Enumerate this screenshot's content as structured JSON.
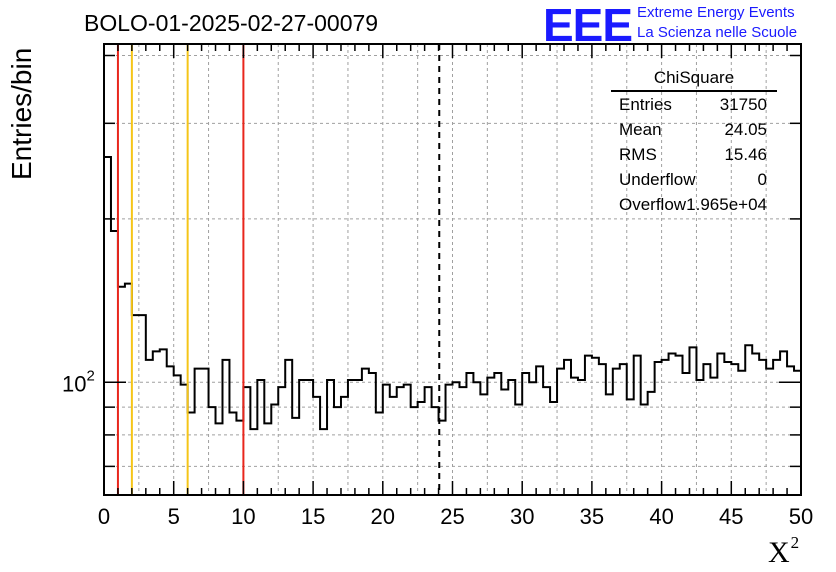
{
  "title": "BOLO-01-2025-02-27-00079",
  "logo": {
    "text": "EEE",
    "line1": "Extreme Energy Events",
    "line2": "La Scienza nelle Scuole",
    "color": "#1a1aff"
  },
  "stats_box": {
    "name": "ChiSquare",
    "rows": [
      {
        "key": "Entries",
        "value": "31750"
      },
      {
        "key": "Mean",
        "value": "24.05"
      },
      {
        "key": "RMS",
        "value": "15.46"
      },
      {
        "key": "Underflow",
        "value": "0"
      },
      {
        "key": "Overflow",
        "value": "1.965e+04"
      }
    ]
  },
  "chart_data": {
    "type": "histogram",
    "title": "BOLO-01-2025-02-27-00079",
    "xlabel": "X",
    "xlabel_superscript": "2",
    "ylabel": "Entries/bin",
    "xlim": [
      0,
      50
    ],
    "ylim_log": [
      62,
      420
    ],
    "yscale": "log",
    "bin_width": 0.5,
    "x_ticks": [
      "0",
      "5",
      "10",
      "15",
      "20",
      "25",
      "30",
      "35",
      "40",
      "45",
      "50"
    ],
    "y_tick_label_base": "10",
    "y_tick_label_exp": "2",
    "grid": true,
    "bin_counts": [
      260,
      190,
      150,
      152,
      133,
      133,
      110,
      114,
      115,
      107,
      103,
      99,
      88,
      106,
      106,
      90,
      84,
      110,
      88,
      85,
      98,
      82,
      101,
      84,
      91,
      98,
      110,
      86,
      101,
      101,
      94,
      82,
      101,
      90,
      94,
      101,
      101,
      106,
      104,
      88,
      99,
      94,
      98,
      99,
      90,
      92,
      98,
      90,
      85,
      99,
      100,
      98,
      104,
      100,
      95,
      102,
      104,
      97,
      101,
      91,
      104,
      100,
      107,
      98,
      92,
      106,
      110,
      102,
      101,
      112,
      111,
      108,
      95,
      106,
      108,
      93,
      112,
      91,
      96,
      109,
      110,
      113,
      112,
      104,
      116,
      101,
      108,
      102,
      113,
      109,
      108,
      105,
      117,
      113,
      110,
      106,
      110,
      114,
      107,
      105
    ],
    "vertical_lines": [
      {
        "x": 1,
        "color": "#e8261c",
        "style": "solid"
      },
      {
        "x": 2,
        "color": "#f5c518",
        "style": "solid"
      },
      {
        "x": 6,
        "color": "#f5c518",
        "style": "solid"
      },
      {
        "x": 10,
        "color": "#e8261c",
        "style": "solid"
      },
      {
        "x": 24.05,
        "color": "#000000",
        "style": "dashed"
      }
    ]
  }
}
